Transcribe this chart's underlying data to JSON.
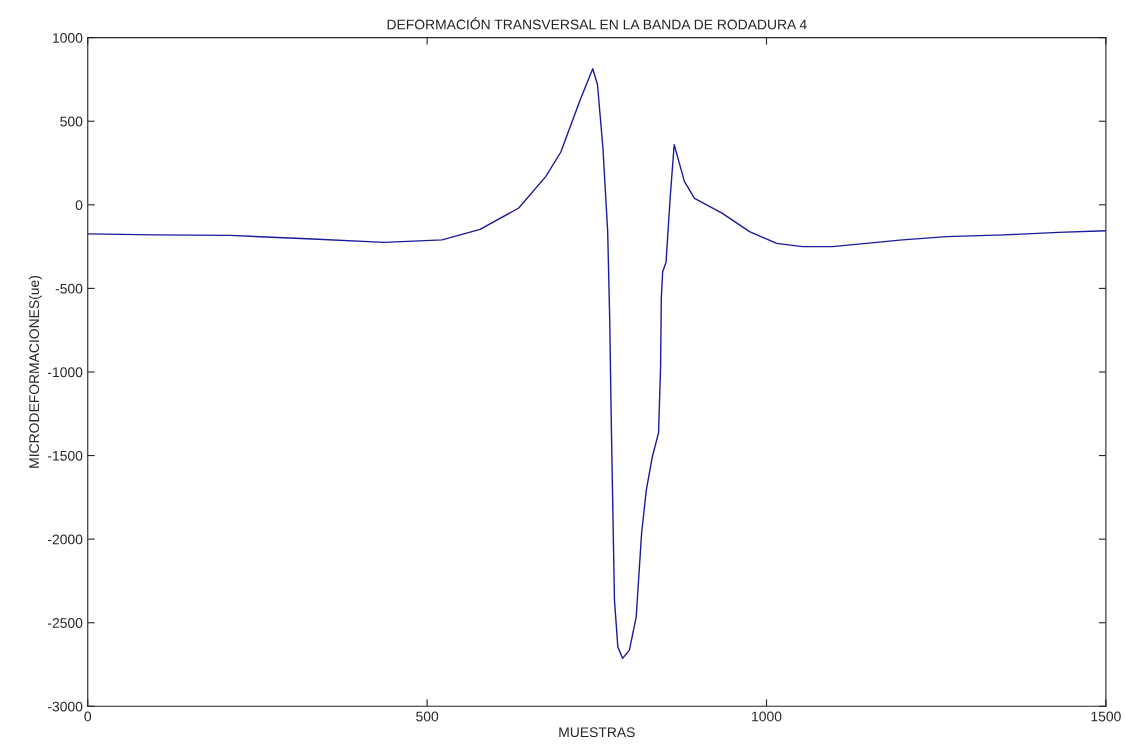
{
  "chart_data": {
    "type": "line",
    "title": "DEFORMACIÓN TRANSVERSAL EN LA BANDA DE RODADURA 4",
    "xlabel": "MUESTRAS",
    "ylabel": "MICRODEFORMACIONES(ue)",
    "series": [
      {
        "color": "#1a1a9a",
        "x": [
          0,
          100,
          210,
          323,
          437,
          522,
          578,
          635,
          675,
          697,
          725,
          744,
          751,
          759,
          766,
          769,
          771,
          773,
          776,
          781,
          788,
          798,
          808,
          816,
          823,
          832,
          841,
          844,
          845,
          847,
          852,
          858,
          864,
          879,
          894,
          935,
          975,
          1015,
          1053,
          1097,
          1147,
          1196,
          1265,
          1350,
          1430,
          1500
        ],
        "values": [
          -174,
          -180,
          -183,
          -203,
          -225,
          -210,
          -147,
          -19,
          170,
          316,
          622,
          814,
          720,
          340,
          -160,
          -682,
          -1223,
          -1685,
          -2364,
          -2646,
          -2713,
          -2664,
          -2466,
          -1963,
          -1704,
          -1504,
          -1363,
          -963,
          -562,
          -400,
          -343,
          38,
          360,
          140,
          38,
          -51,
          -160,
          -231,
          -250,
          -250,
          -231,
          -211,
          -190,
          -180,
          -165,
          -155
        ]
      }
    ],
    "xlim": [
      0,
      1500
    ],
    "xticks": [
      0,
      500,
      1000,
      1500
    ],
    "ylim": [
      -3000,
      1000
    ],
    "yticks": [
      -3000,
      -2500,
      -2000,
      -1500,
      -1000,
      -500,
      0,
      500,
      1000
    ],
    "grid": false,
    "legend": false,
    "marker": "none",
    "line_style": "solid"
  }
}
